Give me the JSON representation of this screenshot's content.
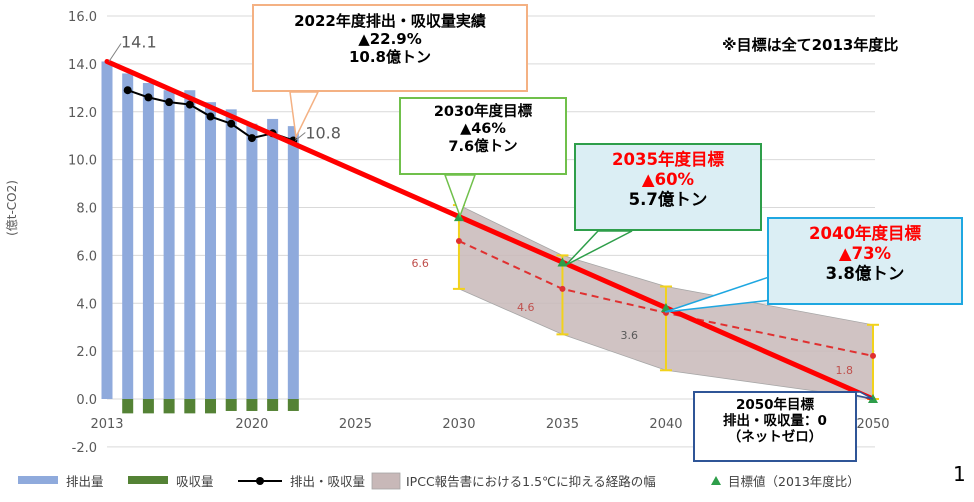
{
  "chart_data": {
    "type": "bar",
    "ylabel": "(億t-CO2)",
    "ylim": [
      -2.0,
      16.0
    ],
    "y_ticks": [
      "16.0",
      "14.0",
      "12.0",
      "10.0",
      "8.0",
      "6.0",
      "4.0",
      "2.0",
      "0.0",
      "-2.0"
    ],
    "x_ticks": [
      "2013",
      "2020",
      "2025",
      "2030",
      "2035",
      "2040",
      "2050"
    ],
    "grid": true,
    "legend_position": "bottom",
    "series": [
      {
        "name": "排出量",
        "kind": "bar",
        "color": "#8faadc",
        "x": [
          2013,
          2014,
          2015,
          2016,
          2017,
          2018,
          2019,
          2020,
          2021,
          2022
        ],
        "values": [
          14.1,
          13.6,
          13.2,
          12.9,
          12.9,
          12.4,
          12.1,
          11.5,
          11.7,
          11.4
        ]
      },
      {
        "name": "吸収量",
        "kind": "bar",
        "color": "#548235",
        "x": [
          2014,
          2015,
          2016,
          2017,
          2018,
          2019,
          2020,
          2021,
          2022
        ],
        "values": [
          -0.6,
          -0.6,
          -0.6,
          -0.6,
          -0.6,
          -0.5,
          -0.5,
          -0.5,
          -0.5
        ]
      },
      {
        "name": "排出・吸収量",
        "kind": "line",
        "color": "#000000",
        "x": [
          2014,
          2015,
          2016,
          2017,
          2018,
          2019,
          2020,
          2021,
          2022
        ],
        "values": [
          12.9,
          12.6,
          12.4,
          12.3,
          11.8,
          11.5,
          10.9,
          11.1,
          10.8
        ]
      },
      {
        "name": "IPCC報告書における1.5℃に抑える経路の幅",
        "kind": "band",
        "color": "#d9c9c9",
        "x": [
          2030,
          2035,
          2040,
          2050
        ],
        "lower": [
          4.6,
          2.7,
          1.2,
          0.0
        ],
        "upper": [
          8.1,
          6.0,
          4.7,
          3.1
        ],
        "median": [
          6.6,
          4.6,
          3.6,
          1.8
        ]
      },
      {
        "name": "目標値（2013年度比）",
        "kind": "marker",
        "color": "#2e9e4a",
        "x": [
          2030,
          2035,
          2040,
          2050
        ],
        "values": [
          7.6,
          5.7,
          3.8,
          0.0
        ]
      }
    ],
    "trend_line": {
      "color": "#ff0000",
      "x": [
        2013,
        2050
      ],
      "values": [
        14.1,
        0.0
      ]
    },
    "data_labels": [
      {
        "text": "14.1",
        "x": 2013,
        "y": 14.1
      },
      {
        "text": "10.8",
        "x": 2022,
        "y": 10.8
      },
      {
        "text": "6.6",
        "x": 2030,
        "y": 6.6
      },
      {
        "text": "4.6",
        "x": 2035,
        "y": 4.6
      },
      {
        "text": "3.6",
        "x": 2040,
        "y": 3.6
      },
      {
        "text": "1.8",
        "x": 2050,
        "y": 1.8
      }
    ]
  },
  "note": "※目標は全て2013年度比",
  "page_number": "1",
  "callouts": [
    {
      "id": "actual-2022",
      "border": "#f4b183",
      "lines": [
        {
          "text": "2022年度排出・吸収量実績",
          "color": "#000000"
        },
        {
          "text": "▲22.9%",
          "color": "#000000"
        },
        {
          "text": "10.8億トン",
          "color": "#000000"
        }
      ]
    },
    {
      "id": "target-2030",
      "border": "#70c04b",
      "lines": [
        {
          "text": "2030年度目標",
          "color": "#000000"
        },
        {
          "text": "▲46%",
          "color": "#000000"
        },
        {
          "text": "7.6億トン",
          "color": "#000000"
        }
      ]
    },
    {
      "id": "target-2035",
      "border": "#2e9e4a",
      "lines": [
        {
          "text": "2035年度目標",
          "color": "#ff0000"
        },
        {
          "text": "▲60%",
          "color": "#ff0000"
        },
        {
          "text": "5.7億トン",
          "color": "#000000"
        }
      ]
    },
    {
      "id": "target-2040",
      "border": "#1ea7e1",
      "lines": [
        {
          "text": "2040年度目標",
          "color": "#ff0000"
        },
        {
          "text": "▲73%",
          "color": "#ff0000"
        },
        {
          "text": "3.8億トン",
          "color": "#000000"
        }
      ]
    },
    {
      "id": "target-2050",
      "border": "#2f5597",
      "lines": [
        {
          "text": "2050年目標",
          "color": "#000000"
        },
        {
          "text": "排出・吸収量：0",
          "color": "#000000"
        },
        {
          "text": "（ネットゼロ）",
          "color": "#000000"
        }
      ]
    }
  ]
}
